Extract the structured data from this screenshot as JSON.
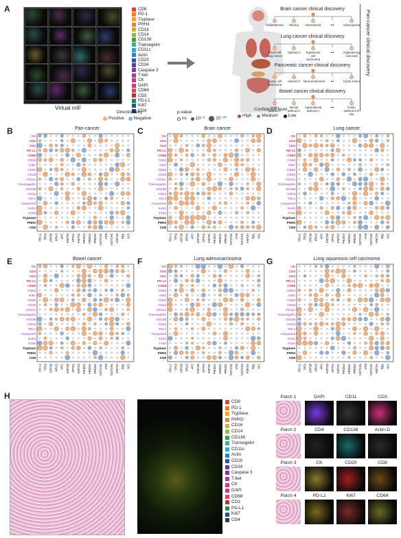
{
  "panel_letters": {
    "a": "A",
    "b": "B",
    "c": "C",
    "d": "D",
    "e": "E",
    "f": "F",
    "g": "G",
    "h": "H"
  },
  "virtual_mif_label": "Virtual mIF",
  "markers": [
    {
      "name": "CD8",
      "color": "#e9422e"
    },
    {
      "name": "PD-1",
      "color": "#f07a26"
    },
    {
      "name": "Tryptase",
      "color": "#f3a522"
    },
    {
      "name": "PHH3",
      "color": "#d98a3a"
    },
    {
      "name": "CD16",
      "color": "#c9b431"
    },
    {
      "name": "CD14",
      "color": "#8fbf3d"
    },
    {
      "name": "CD138",
      "color": "#3aa640"
    },
    {
      "name": "Transegelin",
      "color": "#2fb48e"
    },
    {
      "name": "CD11c",
      "color": "#31aacb"
    },
    {
      "name": "Actin",
      "color": "#2f7fc7"
    },
    {
      "name": "CD20",
      "color": "#3450b8"
    },
    {
      "name": "CD34",
      "color": "#5a3ba8"
    },
    {
      "name": "Caspase 3",
      "color": "#7d3aa3"
    },
    {
      "name": "T-bet",
      "color": "#a23e9c"
    },
    {
      "name": "CK",
      "color": "#c53a8e"
    },
    {
      "name": "DAPI",
      "color": "#d8347a"
    },
    {
      "name": "CD68",
      "color": "#e63f5f"
    },
    {
      "name": "CD3",
      "color": "#b83232"
    },
    {
      "name": "PD-L1",
      "color": "#1f8a4c"
    },
    {
      "name": "Ki67",
      "color": "#145a8a"
    },
    {
      "name": "CD4",
      "color": "#253a7a"
    }
  ],
  "body_diagram": {
    "side_label": "Pan-cancer clinical discovery",
    "sections": [
      {
        "title": "Brain cancer clinical discovery",
        "leaves": [
          "Glioblastoma",
          "Glioma",
          "Germinoma",
          "•••",
          "Astrocytoma"
        ]
      },
      {
        "title": "Lung cancer clinical discovery",
        "leaves": [
          "Small cell lung cancer",
          "AdenoCA",
          "Squamous cell carcinoma",
          "•••",
          "Atypical lung carcinoid"
        ]
      },
      {
        "title": "Pancreatic cancer clinical discovery",
        "leaves": [
          "Acinar cell carcinoma",
          "AdenoCA",
          "Neuroendocrine",
          "•••",
          "Cystic tumor"
        ]
      },
      {
        "title": "Bowel cancer clinical discovery",
        "leaves": [
          "Colon adenoCA",
          "Rectal adenoCA",
          "Appendiceal adenoCA",
          "•••",
          "Colon adenoCA in situ"
        ]
      }
    ]
  },
  "legend": {
    "directionality_title": "Directionality",
    "positive": "Positive",
    "negative": "Negative",
    "pvalue_title": "p-value",
    "ns": "ns",
    "p1": "10⁻⁵",
    "p2": "10⁻¹⁰",
    "confidence_title": "Confidence level",
    "high": "High",
    "medium": "Medium",
    "low": "Low",
    "colors": {
      "positive": "#f2b07e",
      "negative": "#8fb0d6",
      "high": "#d6336b",
      "medium": "#b36ac9",
      "low": "#111111"
    }
  },
  "chart_data": [
    {
      "type": "heatmap",
      "title": "Pan-cancer"
    },
    {
      "type": "heatmap",
      "title": "Brain cancer"
    },
    {
      "type": "heatmap",
      "title": "Lung cancer"
    },
    {
      "type": "heatmap",
      "title": "Bowel cancer"
    },
    {
      "type": "heatmap",
      "title": "Lung adenocarcinoma"
    },
    {
      "type": "heatmap",
      "title": "Lung squamous cell carcinoma"
    }
  ],
  "dot_rows": [
    {
      "name": "CK",
      "conf": "high"
    },
    {
      "name": "CD3",
      "conf": "high"
    },
    {
      "name": "CD4",
      "conf": "high"
    },
    {
      "name": "PD-L1",
      "conf": "high"
    },
    {
      "name": "CD68",
      "conf": "high"
    },
    {
      "name": "CD34",
      "conf": "medium"
    },
    {
      "name": "Ki67",
      "conf": "medium"
    },
    {
      "name": "CD20",
      "conf": "medium"
    },
    {
      "name": "CD16",
      "conf": "medium"
    },
    {
      "name": "CD11c",
      "conf": "medium"
    },
    {
      "name": "Transegelin",
      "conf": "medium"
    },
    {
      "name": "CD138",
      "conf": "medium"
    },
    {
      "name": "CD14",
      "conf": "medium"
    },
    {
      "name": "PD-1",
      "conf": "medium"
    },
    {
      "name": "Caspase3",
      "conf": "medium"
    },
    {
      "name": "Actin",
      "conf": "medium"
    },
    {
      "name": "T-bet",
      "conf": "medium"
    },
    {
      "name": "Tryptase",
      "conf": "low"
    },
    {
      "name": "PHH3",
      "conf": "low"
    },
    {
      "name": "CD8",
      "conf": "low"
    }
  ],
  "dot_cols": [
    "PD-L1",
    "TP53",
    "LRP1B",
    "KRAS",
    "APC",
    "KMT2D",
    "SPTA1",
    "KMT2C",
    "PIK3CA",
    "ARID1A",
    "PRKDC",
    "NOTCH1",
    "ATM",
    "NOTCH1b",
    "KMT2A",
    "RB1",
    "NF1"
  ],
  "patches": {
    "labels": [
      "Patch 1",
      "Patch 2",
      "Patch 3",
      "Patch 4"
    ],
    "stains": [
      [
        "DAPI",
        "CD11",
        "CD3"
      ],
      [
        "CD4",
        "CD138",
        "Actin-D"
      ],
      [
        "CK",
        "CD20",
        "CD8"
      ],
      [
        "PD-L1",
        "Ki67",
        "CD68"
      ]
    ]
  }
}
